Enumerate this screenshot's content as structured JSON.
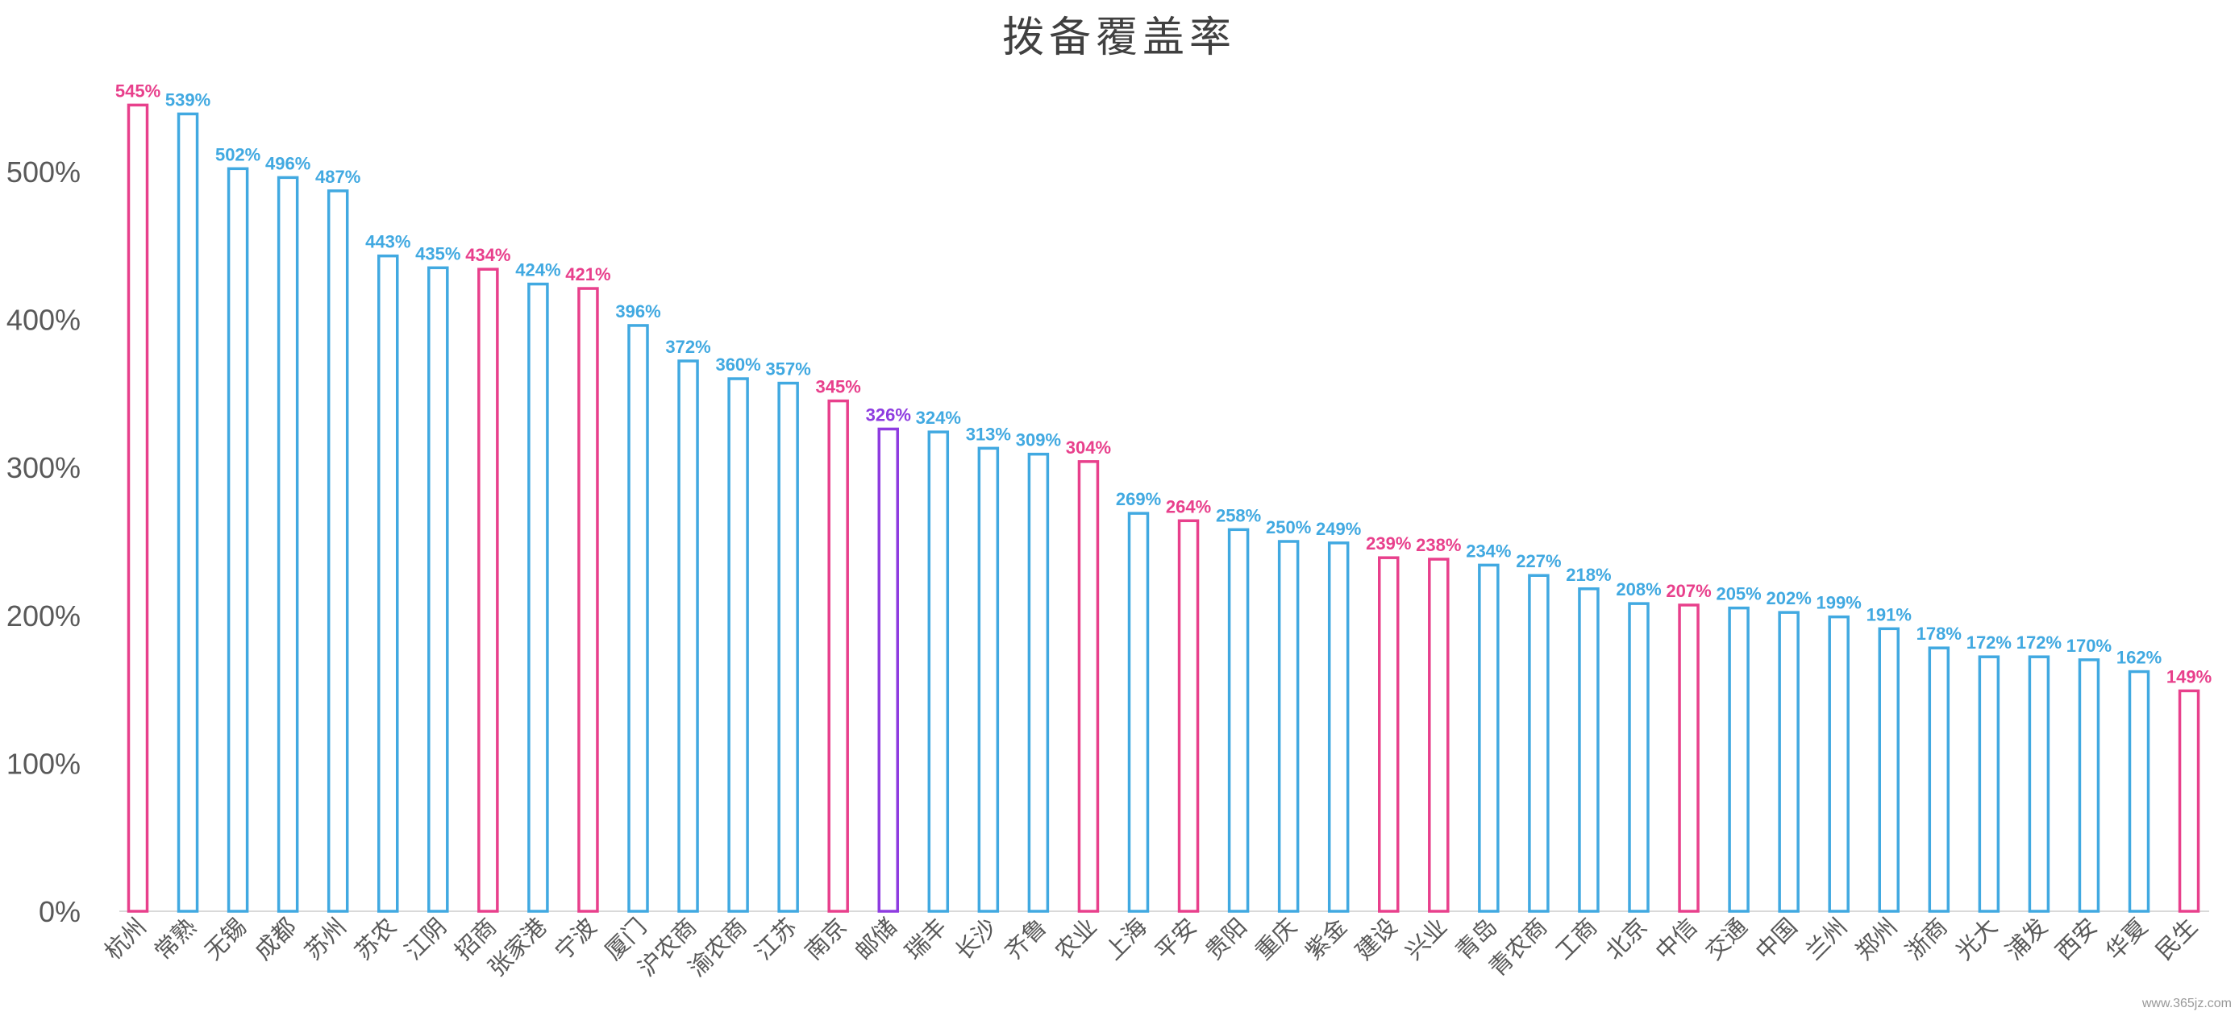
{
  "chart_data": {
    "type": "bar",
    "title": "拨备覆盖率",
    "xlabel": "",
    "ylabel": "",
    "ylim": [
      0,
      550
    ],
    "yticks": [
      "0%",
      "100%",
      "200%",
      "300%",
      "400%",
      "500%"
    ],
    "ytick_values": [
      0,
      100,
      200,
      300,
      400,
      500
    ],
    "grid": false,
    "legend": "none",
    "bar_style": "outline",
    "categories": [
      "杭州",
      "常熟",
      "无锡",
      "成都",
      "苏州",
      "苏农",
      "江阴",
      "招商",
      "张家港",
      "宁波",
      "厦门",
      "沪农商",
      "渝农商",
      "江苏",
      "南京",
      "邮储",
      "瑞丰",
      "长沙",
      "齐鲁",
      "农业",
      "上海",
      "平安",
      "贵阳",
      "重庆",
      "紫金",
      "建设",
      "兴业",
      "青岛",
      "青农商",
      "工商",
      "北京",
      "中信",
      "交通",
      "中国",
      "兰州",
      "郑州",
      "浙商",
      "光大",
      "浦发",
      "西安",
      "华夏",
      "民生"
    ],
    "values": [
      545,
      539,
      502,
      496,
      487,
      443,
      435,
      434,
      424,
      421,
      396,
      372,
      360,
      357,
      345,
      326,
      324,
      313,
      309,
      304,
      269,
      264,
      258,
      250,
      249,
      239,
      238,
      234,
      227,
      218,
      208,
      207,
      205,
      202,
      199,
      191,
      178,
      172,
      172,
      170,
      162,
      149
    ],
    "data_labels": [
      "545%",
      "539%",
      "502%",
      "496%",
      "487%",
      "443%",
      "435%",
      "434%",
      "424%",
      "421%",
      "396%",
      "372%",
      "360%",
      "357%",
      "345%",
      "326%",
      "324%",
      "313%",
      "309%",
      "304%",
      "269%",
      "264%",
      "258%",
      "250%",
      "249%",
      "239%",
      "238%",
      "234%",
      "227%",
      "218%",
      "208%",
      "207%",
      "205%",
      "202%",
      "199%",
      "191%",
      "178%",
      "172%",
      "172%",
      "170%",
      "162%",
      "149%"
    ],
    "bar_groups": [
      "pink",
      "blue",
      "blue",
      "blue",
      "blue",
      "blue",
      "blue",
      "pink",
      "blue",
      "pink",
      "blue",
      "blue",
      "blue",
      "blue",
      "pink",
      "purple",
      "blue",
      "blue",
      "blue",
      "pink",
      "blue",
      "pink",
      "blue",
      "blue",
      "blue",
      "pink",
      "pink",
      "blue",
      "blue",
      "blue",
      "blue",
      "pink",
      "blue",
      "blue",
      "blue",
      "blue",
      "blue",
      "blue",
      "blue",
      "blue",
      "blue",
      "pink"
    ],
    "colors": {
      "blue": "#41A9E1",
      "pink": "#E8408C",
      "purple": "#8E3CE0"
    }
  },
  "watermark": "www.365jz.com"
}
